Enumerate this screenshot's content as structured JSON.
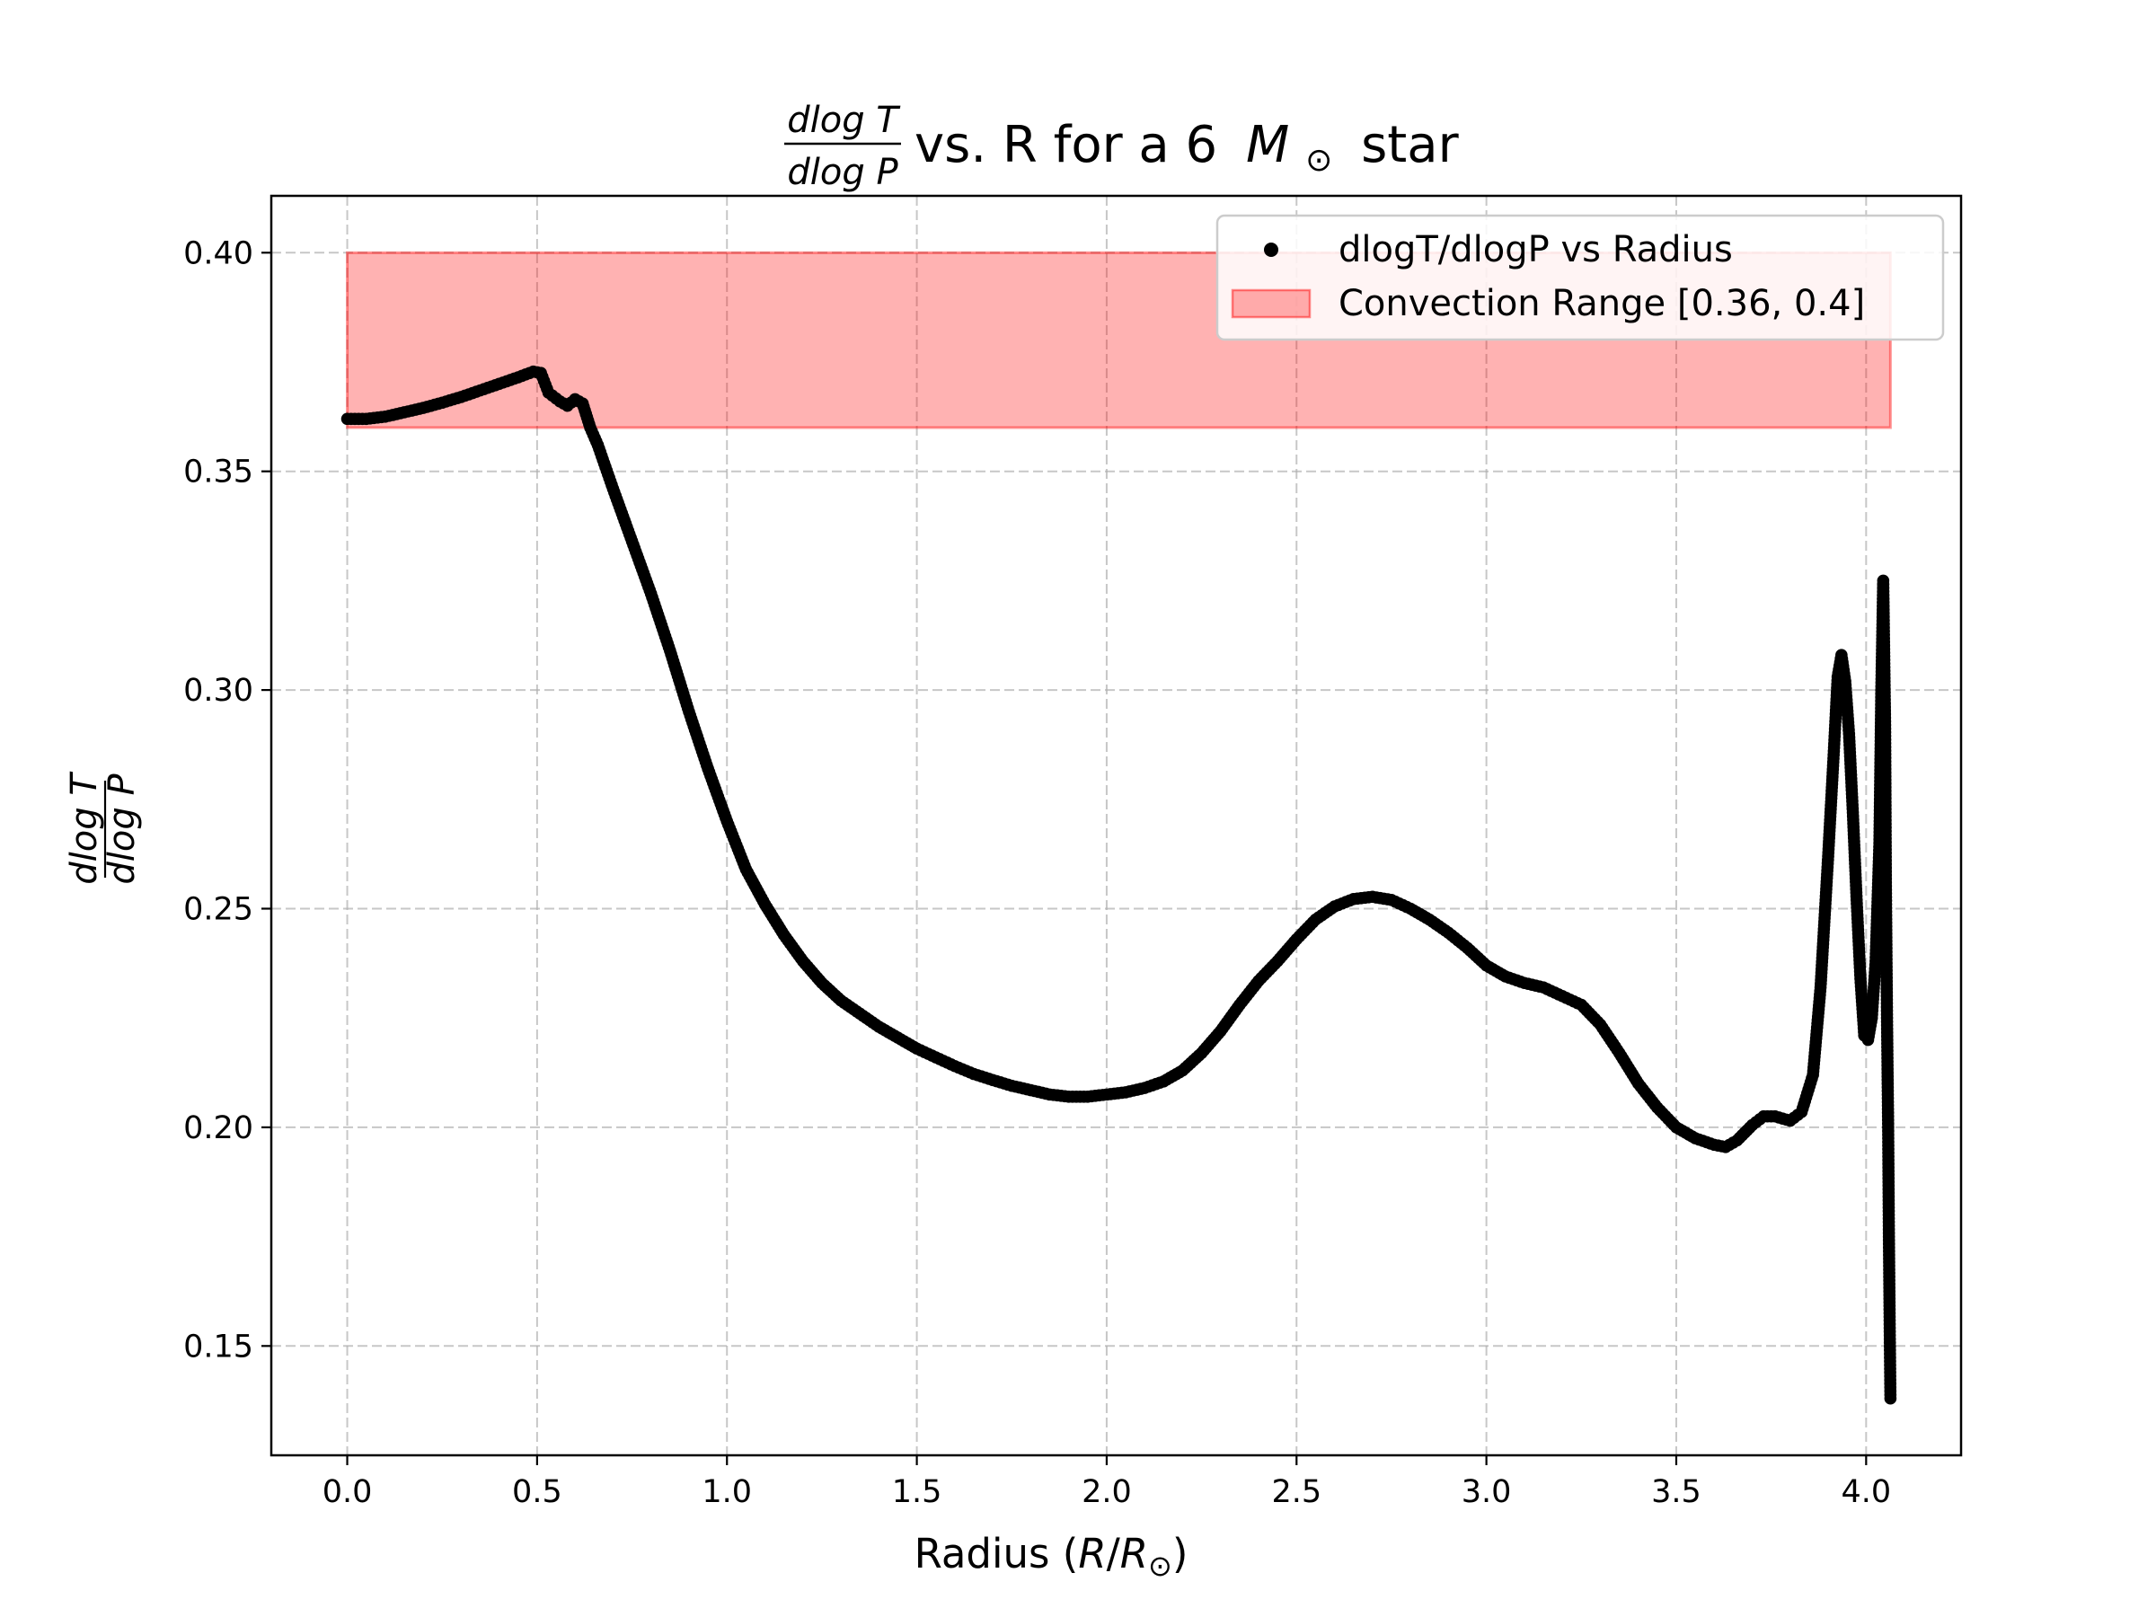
{
  "chart_data": {
    "type": "scatter",
    "title": {
      "numerator": "dlog T",
      "denominator": "dlog P",
      "text_before": "vs. R for a 6",
      "mass_symbol": "M",
      "sun_symbol": "⊙",
      "text_after": "star"
    },
    "xlabel": {
      "text": "Radius (",
      "r1": "R",
      "slash": "/",
      "r2": "R",
      "sun": "⊙",
      "close": ")"
    },
    "ylabel": {
      "numerator": "dlog T",
      "denominator": "dlog P"
    },
    "xlim": [
      -0.2,
      4.25
    ],
    "ylim": [
      0.125,
      0.413
    ],
    "x_ticks": [
      0.0,
      0.5,
      1.0,
      1.5,
      2.0,
      2.5,
      3.0,
      3.5,
      4.0
    ],
    "x_tick_labels": [
      "0.0",
      "0.5",
      "1.0",
      "1.5",
      "2.0",
      "2.5",
      "3.0",
      "3.5",
      "4.0"
    ],
    "y_ticks": [
      0.15,
      0.2,
      0.25,
      0.3,
      0.35,
      0.4
    ],
    "y_tick_labels": [
      "0.15",
      "0.20",
      "0.25",
      "0.30",
      "0.35",
      "0.40"
    ],
    "grid": true,
    "legend_position": "top-right",
    "series": [
      {
        "name": "dlogT/dlogP vs Radius",
        "color": "#000000",
        "points": [
          [
            0.0,
            0.362
          ],
          [
            0.05,
            0.362
          ],
          [
            0.1,
            0.3625
          ],
          [
            0.15,
            0.3635
          ],
          [
            0.2,
            0.3645
          ],
          [
            0.25,
            0.3657
          ],
          [
            0.3,
            0.367
          ],
          [
            0.35,
            0.3685
          ],
          [
            0.4,
            0.37
          ],
          [
            0.45,
            0.3715
          ],
          [
            0.49,
            0.3728
          ],
          [
            0.51,
            0.3725
          ],
          [
            0.53,
            0.368
          ],
          [
            0.56,
            0.366
          ],
          [
            0.58,
            0.365
          ],
          [
            0.6,
            0.3665
          ],
          [
            0.62,
            0.3655
          ],
          [
            0.64,
            0.36
          ],
          [
            0.66,
            0.356
          ],
          [
            0.7,
            0.346
          ],
          [
            0.75,
            0.334
          ],
          [
            0.8,
            0.322
          ],
          [
            0.85,
            0.309
          ],
          [
            0.9,
            0.295
          ],
          [
            0.95,
            0.282
          ],
          [
            1.0,
            0.27
          ],
          [
            1.05,
            0.259
          ],
          [
            1.1,
            0.251
          ],
          [
            1.15,
            0.244
          ],
          [
            1.2,
            0.238
          ],
          [
            1.25,
            0.233
          ],
          [
            1.3,
            0.229
          ],
          [
            1.35,
            0.226
          ],
          [
            1.4,
            0.223
          ],
          [
            1.45,
            0.2205
          ],
          [
            1.5,
            0.218
          ],
          [
            1.55,
            0.216
          ],
          [
            1.6,
            0.214
          ],
          [
            1.65,
            0.2122
          ],
          [
            1.7,
            0.2108
          ],
          [
            1.75,
            0.2095
          ],
          [
            1.8,
            0.2085
          ],
          [
            1.85,
            0.2075
          ],
          [
            1.9,
            0.207
          ],
          [
            1.95,
            0.207
          ],
          [
            2.0,
            0.2075
          ],
          [
            2.05,
            0.208
          ],
          [
            2.1,
            0.209
          ],
          [
            2.15,
            0.2105
          ],
          [
            2.2,
            0.213
          ],
          [
            2.25,
            0.217
          ],
          [
            2.3,
            0.222
          ],
          [
            2.35,
            0.228
          ],
          [
            2.4,
            0.2335
          ],
          [
            2.45,
            0.238
          ],
          [
            2.5,
            0.243
          ],
          [
            2.55,
            0.2475
          ],
          [
            2.6,
            0.2505
          ],
          [
            2.65,
            0.2522
          ],
          [
            2.7,
            0.2527
          ],
          [
            2.75,
            0.252
          ],
          [
            2.8,
            0.25
          ],
          [
            2.85,
            0.2475
          ],
          [
            2.9,
            0.2445
          ],
          [
            2.95,
            0.241
          ],
          [
            3.0,
            0.237
          ],
          [
            3.05,
            0.2345
          ],
          [
            3.1,
            0.233
          ],
          [
            3.15,
            0.232
          ],
          [
            3.2,
            0.23
          ],
          [
            3.25,
            0.228
          ],
          [
            3.3,
            0.2235
          ],
          [
            3.35,
            0.217
          ],
          [
            3.4,
            0.21
          ],
          [
            3.45,
            0.2045
          ],
          [
            3.5,
            0.2
          ],
          [
            3.55,
            0.1975
          ],
          [
            3.6,
            0.196
          ],
          [
            3.63,
            0.1955
          ],
          [
            3.66,
            0.197
          ],
          [
            3.7,
            0.2005
          ],
          [
            3.73,
            0.2025
          ],
          [
            3.76,
            0.2025
          ],
          [
            3.8,
            0.2015
          ],
          [
            3.83,
            0.2035
          ],
          [
            3.86,
            0.212
          ],
          [
            3.88,
            0.232
          ],
          [
            3.9,
            0.262
          ],
          [
            3.915,
            0.286
          ],
          [
            3.925,
            0.303
          ],
          [
            3.935,
            0.308
          ],
          [
            3.945,
            0.302
          ],
          [
            3.955,
            0.29
          ],
          [
            3.965,
            0.272
          ],
          [
            3.975,
            0.252
          ],
          [
            3.985,
            0.234
          ],
          [
            3.995,
            0.221
          ],
          [
            4.005,
            0.22
          ],
          [
            4.015,
            0.225
          ],
          [
            4.025,
            0.238
          ],
          [
            4.035,
            0.265
          ],
          [
            4.04,
            0.3
          ],
          [
            4.045,
            0.325
          ],
          [
            4.05,
            0.292
          ],
          [
            4.052,
            0.256
          ],
          [
            4.055,
            0.225
          ],
          [
            4.058,
            0.2
          ],
          [
            4.06,
            0.175
          ],
          [
            4.062,
            0.155
          ],
          [
            4.064,
            0.138
          ]
        ]
      }
    ],
    "convection_band": {
      "name": "Convection Range [0.36, 0.4]",
      "y_range": [
        0.36,
        0.4
      ],
      "x_range": [
        0.0,
        4.064
      ],
      "color": "#ff0000",
      "opacity": 0.3
    }
  }
}
